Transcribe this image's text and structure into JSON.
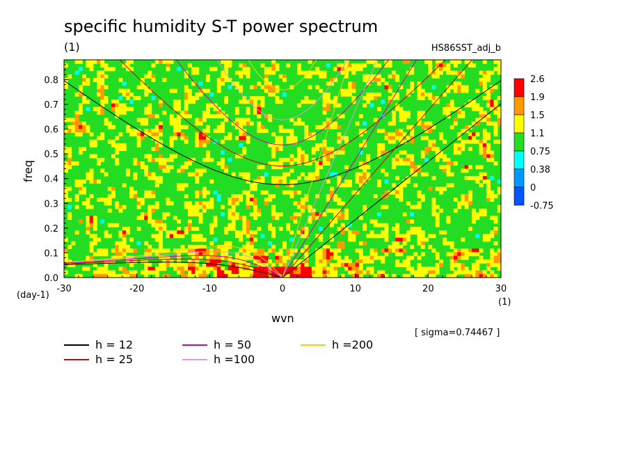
{
  "chart_data": {
    "type": "heatmap",
    "title": "specific humidity S-T power spectrum",
    "subtitle_left": "(1)",
    "subtitle_right": "HS86SST_adj_b",
    "xlabel": "wvn",
    "ylabel": "freq",
    "x_unit": "(1)",
    "y_unit": "(day-1)",
    "xlim": [
      -30,
      30
    ],
    "ylim": [
      0,
      0.88
    ],
    "x_ticks": [
      "-30",
      "-20",
      "-10",
      "0",
      "10",
      "20",
      "30"
    ],
    "x_tick_values": [
      -30,
      -20,
      -10,
      0,
      10,
      20,
      30
    ],
    "y_ticks": [
      "0.0",
      "0.1",
      "0.2",
      "0.3",
      "0.4",
      "0.5",
      "0.6",
      "0.7",
      "0.8"
    ],
    "y_tick_values": [
      0.0,
      0.1,
      0.2,
      0.3,
      0.4,
      0.5,
      0.6,
      0.7,
      0.8
    ],
    "colorbar": {
      "labels": [
        "2.6",
        "1.9",
        "1.5",
        "1.1",
        "0.75",
        "0.38",
        "0",
        "-0.75"
      ],
      "colors": [
        "#ff0000",
        "#ff9900",
        "#ffff00",
        "#22dd22",
        "#00ffff",
        "#0099ff",
        "#0055ff"
      ]
    },
    "annotation": "[ sigma=0.74467 ]",
    "dispersion_curves": [
      {
        "name": "h = 12",
        "h": 12,
        "color": "#000000"
      },
      {
        "name": "h = 25",
        "h": 25,
        "color": "#cc0000"
      },
      {
        "name": "h = 50",
        "h": 50,
        "color": "#cc00aa"
      },
      {
        "name": "h =100",
        "h": 100,
        "color": "#dd99dd"
      },
      {
        "name": "h =200",
        "h": 200,
        "color": "#ffcc00"
      }
    ]
  }
}
